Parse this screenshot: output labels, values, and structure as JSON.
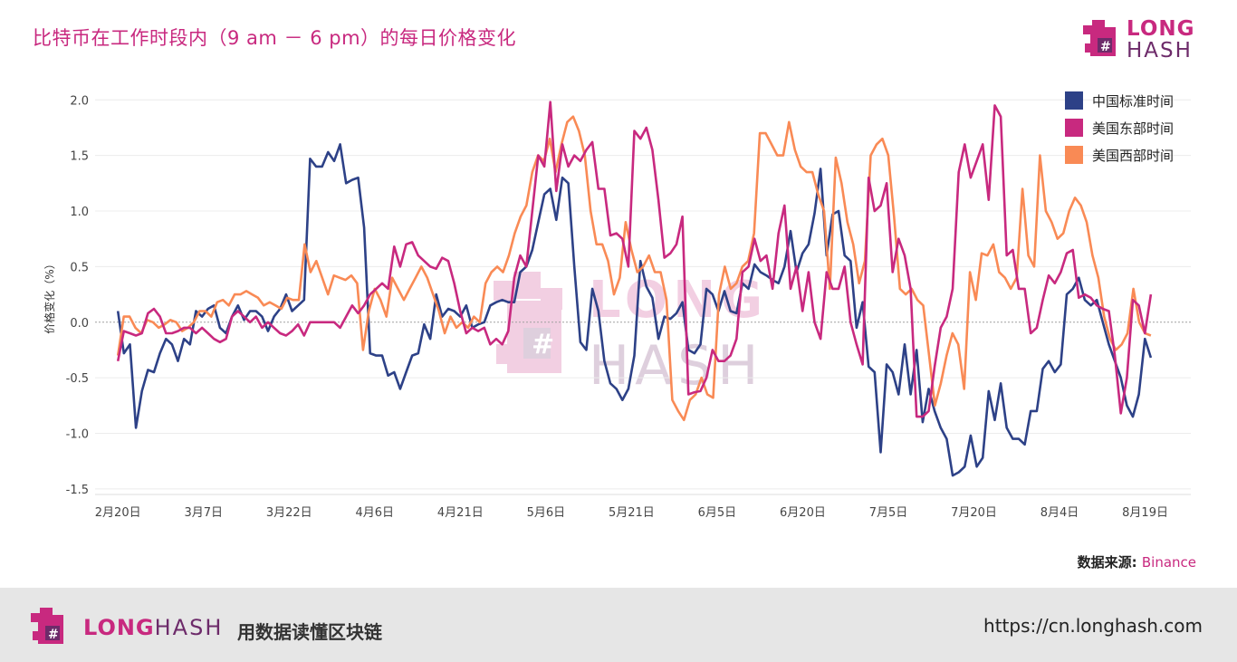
{
  "title": "比特币在工作时段内（9 am － 6 pm）的每日价格变化",
  "logo": {
    "line1": "LONG",
    "line2": "HASH"
  },
  "source": {
    "label": "数据来源: ",
    "value": "Binance"
  },
  "footer": {
    "brand1": "LONG",
    "brand2": "HASH",
    "slogan": "用数据读懂区块链",
    "url": "https://cn.longhash.com"
  },
  "colors": {
    "china": "#2d4187",
    "us_east": "#c8297f",
    "us_west": "#f98a55",
    "accent": "#c8297f"
  },
  "chart_data": {
    "type": "line",
    "title": "比特币在工作时段内（9 am － 6 pm）的每日价格变化",
    "ylabel": "价格变化（%）",
    "xlabel": "",
    "ylim": [
      -1.55,
      2.1
    ],
    "yticks": [
      "2.0",
      "1.5",
      "1.0",
      "0.5",
      "0.0",
      "-0.5",
      "-1.0",
      "-1.5"
    ],
    "ytick_values": [
      2.0,
      1.5,
      1.0,
      0.5,
      0.0,
      -0.5,
      -1.0,
      -1.5
    ],
    "xticks": [
      "2月20日",
      "3月7日",
      "3月22日",
      "4月6日",
      "4月21日",
      "5月6日",
      "5月21日",
      "6月5日",
      "6月20日",
      "7月5日",
      "7月20日",
      "8月4日",
      "8月19日"
    ],
    "xtick_days": [
      0,
      15,
      30,
      45,
      60,
      75,
      90,
      105,
      120,
      135,
      150,
      165,
      180
    ],
    "xlim_days": [
      -4,
      188
    ],
    "grid": true,
    "legend_position": "top-right",
    "x_start_day": 0,
    "x_end_day": 181,
    "series": [
      {
        "name": "中国标准时间",
        "color": "#2d4187",
        "values": [
          0.1,
          -0.28,
          -0.2,
          -0.95,
          -0.62,
          -0.43,
          -0.45,
          -0.28,
          -0.15,
          -0.2,
          -0.35,
          -0.15,
          -0.2,
          0.1,
          0.05,
          0.12,
          0.15,
          -0.05,
          -0.1,
          0.05,
          0.15,
          0.02,
          0.1,
          0.1,
          0.05,
          -0.08,
          0.05,
          0.12,
          0.25,
          0.1,
          0.15,
          0.2,
          1.47,
          1.4,
          1.4,
          1.53,
          1.45,
          1.6,
          1.25,
          1.28,
          1.3,
          0.85,
          -0.28,
          -0.3,
          -0.3,
          -0.48,
          -0.45,
          -0.6,
          -0.45,
          -0.3,
          -0.28,
          -0.02,
          -0.15,
          0.25,
          0.05,
          0.12,
          0.1,
          0.05,
          0.15,
          -0.05,
          -0.02,
          0.0,
          0.15,
          0.18,
          0.2,
          0.18,
          0.18,
          0.45,
          0.5,
          0.65,
          0.9,
          1.15,
          1.2,
          0.92,
          1.3,
          1.25,
          0.5,
          -0.18,
          -0.25,
          0.3,
          0.1,
          -0.35,
          -0.55,
          -0.6,
          -0.7,
          -0.6,
          -0.3,
          0.55,
          0.32,
          0.22,
          -0.15,
          0.05,
          0.03,
          0.08,
          0.18,
          -0.25,
          -0.28,
          -0.2,
          0.3,
          0.25,
          0.1,
          0.28,
          0.1,
          0.08,
          0.35,
          0.3,
          0.52,
          0.45,
          0.42,
          0.38,
          0.35,
          0.5,
          0.82,
          0.45,
          0.62,
          0.7,
          0.98,
          1.38,
          0.6,
          0.97,
          1.0,
          0.6,
          0.55,
          -0.05,
          0.18,
          -0.4,
          -0.45,
          -1.17,
          -0.38,
          -0.45,
          -0.65,
          -0.2,
          -0.65,
          -0.25,
          -0.9,
          -0.6,
          -0.8,
          -0.95,
          -1.05,
          -1.38,
          -1.35,
          -1.3,
          -1.02,
          -1.3,
          -1.22,
          -0.62,
          -0.88,
          -0.55,
          -0.95,
          -1.05,
          -1.05,
          -1.1,
          -0.8,
          -0.8,
          -0.42,
          -0.35,
          -0.45,
          -0.38,
          0.25,
          0.3,
          0.4,
          0.2,
          0.15,
          0.2,
          0.0,
          -0.2,
          -0.35,
          -0.5,
          -0.75,
          -0.85,
          -0.65,
          -0.15,
          -0.32
        ]
      },
      {
        "name": "美国东部时间",
        "color": "#c8297f",
        "values": [
          -0.35,
          -0.08,
          -0.1,
          -0.12,
          -0.1,
          0.08,
          0.12,
          0.05,
          -0.1,
          -0.1,
          -0.08,
          -0.05,
          -0.05,
          -0.1,
          -0.05,
          -0.1,
          -0.15,
          -0.18,
          -0.15,
          0.05,
          0.1,
          0.05,
          0.0,
          0.05,
          -0.05,
          0.0,
          -0.05,
          -0.1,
          -0.12,
          -0.08,
          -0.02,
          -0.12,
          0.0,
          0.0,
          0.0,
          0.0,
          0.0,
          -0.05,
          0.05,
          0.15,
          0.08,
          0.15,
          0.25,
          0.3,
          0.35,
          0.3,
          0.68,
          0.5,
          0.7,
          0.72,
          0.6,
          0.55,
          0.5,
          0.48,
          0.58,
          0.55,
          0.35,
          0.1,
          -0.1,
          -0.05,
          -0.08,
          -0.05,
          -0.2,
          -0.15,
          -0.2,
          -0.08,
          0.4,
          0.6,
          0.5,
          1.0,
          1.5,
          1.4,
          1.98,
          1.18,
          1.6,
          1.4,
          1.5,
          1.45,
          1.55,
          1.62,
          1.2,
          1.2,
          0.78,
          0.8,
          0.75,
          0.5,
          1.72,
          1.65,
          1.75,
          1.55,
          1.1,
          0.58,
          0.62,
          0.7,
          0.95,
          -0.65,
          -0.63,
          -0.62,
          -0.5,
          -0.25,
          -0.35,
          -0.35,
          -0.3,
          -0.15,
          0.45,
          0.5,
          0.75,
          0.55,
          0.6,
          0.3,
          0.8,
          1.05,
          0.3,
          0.5,
          0.1,
          0.45,
          0.0,
          -0.15,
          0.45,
          0.3,
          0.3,
          0.5,
          0.0,
          -0.2,
          -0.38,
          1.3,
          1.0,
          1.05,
          1.25,
          0.45,
          0.75,
          0.6,
          0.3,
          -0.85,
          -0.85,
          -0.8,
          -0.4,
          -0.05,
          0.05,
          0.3,
          1.35,
          1.6,
          1.3,
          1.45,
          1.6,
          1.1,
          1.95,
          1.85,
          0.6,
          0.65,
          0.3,
          0.3,
          -0.1,
          -0.05,
          0.2,
          0.42,
          0.35,
          0.45,
          0.62,
          0.65,
          0.22,
          0.25,
          0.22,
          0.15,
          0.12,
          0.1,
          -0.3,
          -0.82,
          -0.5,
          0.2,
          0.15,
          -0.1,
          0.25
        ]
      },
      {
        "name": "美国西部时间",
        "color": "#f98a55",
        "values": [
          -0.3,
          0.05,
          0.05,
          -0.05,
          -0.1,
          0.02,
          0.0,
          -0.05,
          -0.02,
          0.02,
          0.0,
          -0.08,
          -0.05,
          0.0,
          0.1,
          0.1,
          0.05,
          0.18,
          0.2,
          0.15,
          0.25,
          0.25,
          0.28,
          0.25,
          0.22,
          0.15,
          0.18,
          0.15,
          0.12,
          0.22,
          0.2,
          0.2,
          0.7,
          0.45,
          0.55,
          0.4,
          0.25,
          0.42,
          0.4,
          0.38,
          0.42,
          0.35,
          -0.25,
          0.1,
          0.3,
          0.2,
          0.05,
          0.4,
          0.3,
          0.2,
          0.3,
          0.4,
          0.5,
          0.4,
          0.25,
          0.1,
          -0.1,
          0.05,
          -0.05,
          0.0,
          -0.05,
          0.05,
          0.0,
          0.35,
          0.45,
          0.5,
          0.45,
          0.6,
          0.8,
          0.95,
          1.05,
          1.35,
          1.5,
          1.45,
          1.65,
          1.35,
          1.6,
          1.8,
          1.85,
          1.72,
          1.5,
          1.0,
          0.7,
          0.7,
          0.55,
          0.25,
          0.4,
          0.9,
          0.65,
          0.45,
          0.5,
          0.6,
          0.45,
          0.45,
          0.2,
          -0.7,
          -0.8,
          -0.88,
          -0.7,
          -0.65,
          -0.5,
          -0.65,
          -0.68,
          0.25,
          0.5,
          0.3,
          0.35,
          0.5,
          0.55,
          0.8,
          1.7,
          1.7,
          1.6,
          1.5,
          1.5,
          1.8,
          1.55,
          1.4,
          1.35,
          1.35,
          1.15,
          1.0,
          0.3,
          1.48,
          1.25,
          0.9,
          0.7,
          0.35,
          0.55,
          1.5,
          1.6,
          1.65,
          1.5,
          0.95,
          0.3,
          0.25,
          0.3,
          0.2,
          0.15,
          -0.3,
          -0.75,
          -0.55,
          -0.3,
          -0.1,
          -0.2,
          -0.6,
          0.45,
          0.2,
          0.62,
          0.6,
          0.7,
          0.45,
          0.4,
          0.3,
          0.4,
          1.2,
          0.6,
          0.5,
          1.5,
          1.0,
          0.9,
          0.75,
          0.8,
          1.0,
          1.12,
          1.05,
          0.9,
          0.6,
          0.4,
          0.05,
          -0.15,
          -0.25,
          -0.2,
          -0.1,
          0.3,
          0.0,
          -0.1,
          -0.12
        ]
      }
    ]
  }
}
